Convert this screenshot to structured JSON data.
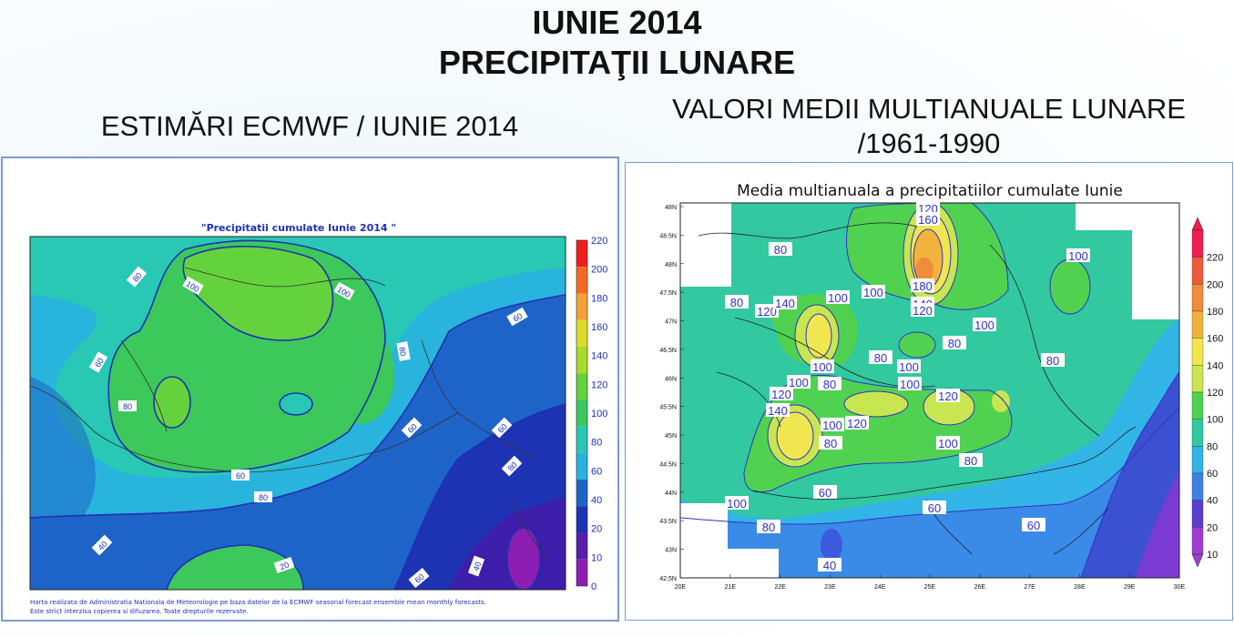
{
  "page": {
    "title_line1": "IUNIE 2014",
    "title_line2": "PRECIPITAŢII LUNARE",
    "subtitle_left": "ESTIMĂRI ECMWF / IUNIE 2014",
    "subtitle_right_line1": "VALORI MEDII MULTIANUALE LUNARE",
    "subtitle_right_line2": "/1961-1990"
  },
  "left_map": {
    "map_title": "\"Precipitatii cumulate Iunie 2014 \"",
    "footer_line1": "Harta realizata de Administratia Nationala de Meteorologie pe baza datelor de la ECMWF seasonal forecast ensemble mean monthly forecasts.",
    "footer_line2": "Este strict interzisa copierea si difuzarea. Toate drepturile rezervate.",
    "legend_values": [
      "220",
      "200",
      "180",
      "160",
      "140",
      "120",
      "100",
      "80",
      "60",
      "40",
      "20",
      "10",
      "0"
    ],
    "legend_colors": [
      "#f01e1e",
      "#f46a22",
      "#f4a236",
      "#dcdc28",
      "#a8dc28",
      "#64d23c",
      "#3cc85a",
      "#28c8b4",
      "#28b4dc",
      "#1e64c8",
      "#1e32b4",
      "#5a1eaa",
      "#8c1eb4"
    ],
    "contour_labels": [
      "80",
      "100",
      "100",
      "60",
      "60",
      "80",
      "80",
      "60",
      "60",
      "60",
      "80",
      "40",
      "20",
      "60",
      "40",
      "80"
    ]
  },
  "right_map": {
    "map_title": "Media multianuala a precipitatiilor cumulate Iunie",
    "legend_values": [
      "220",
      "200",
      "180",
      "160",
      "140",
      "120",
      "100",
      "80",
      "60",
      "40",
      "20",
      "10"
    ],
    "legend_colors": [
      "#f01e50",
      "#f05a3c",
      "#f08c3c",
      "#f0b43c",
      "#f0e650",
      "#c8e650",
      "#50d250",
      "#32c8a0",
      "#32b4e6",
      "#3c82e6",
      "#5a3cd2",
      "#a03cd2"
    ],
    "lat_labels": [
      "48N",
      "48.5N",
      "48N",
      "47.5N",
      "47N",
      "46.5N",
      "46N",
      "45.5N",
      "45N",
      "44.5N",
      "44N",
      "43.5N",
      "43N",
      "42.5N"
    ],
    "lon_labels": [
      "20E",
      "21E",
      "22E",
      "23E",
      "24E",
      "25E",
      "26E",
      "27E",
      "28E",
      "29E",
      "30E"
    ],
    "contour_labels": [
      "120",
      "160",
      "80",
      "100",
      "100",
      "180",
      "140",
      "120",
      "80",
      "120",
      "140",
      "100",
      "100",
      "80",
      "80",
      "100",
      "80",
      "100",
      "100",
      "80",
      "100",
      "120",
      "140",
      "120",
      "100",
      "120",
      "80",
      "100",
      "80",
      "60",
      "100",
      "80",
      "60",
      "60",
      "40"
    ]
  }
}
